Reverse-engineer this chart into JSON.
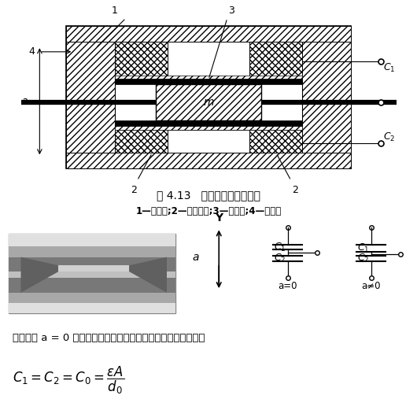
{
  "title": "图 4.13   电容式加速度传感器",
  "subtitle": "1—绝缘体;2—固定电极;3—质量块;4—弹簧片",
  "text1": "当加速度 a = 0 时，质量块位于平衡位置，两差动电容相等，即",
  "bg_color": "#ffffff",
  "label1": "1",
  "label2": "2",
  "label3": "3",
  "label4": "4",
  "label_a": "a",
  "label_m": "m",
  "label_Y": "Y",
  "label_a0": "a=0",
  "label_ane0": "a≠0"
}
